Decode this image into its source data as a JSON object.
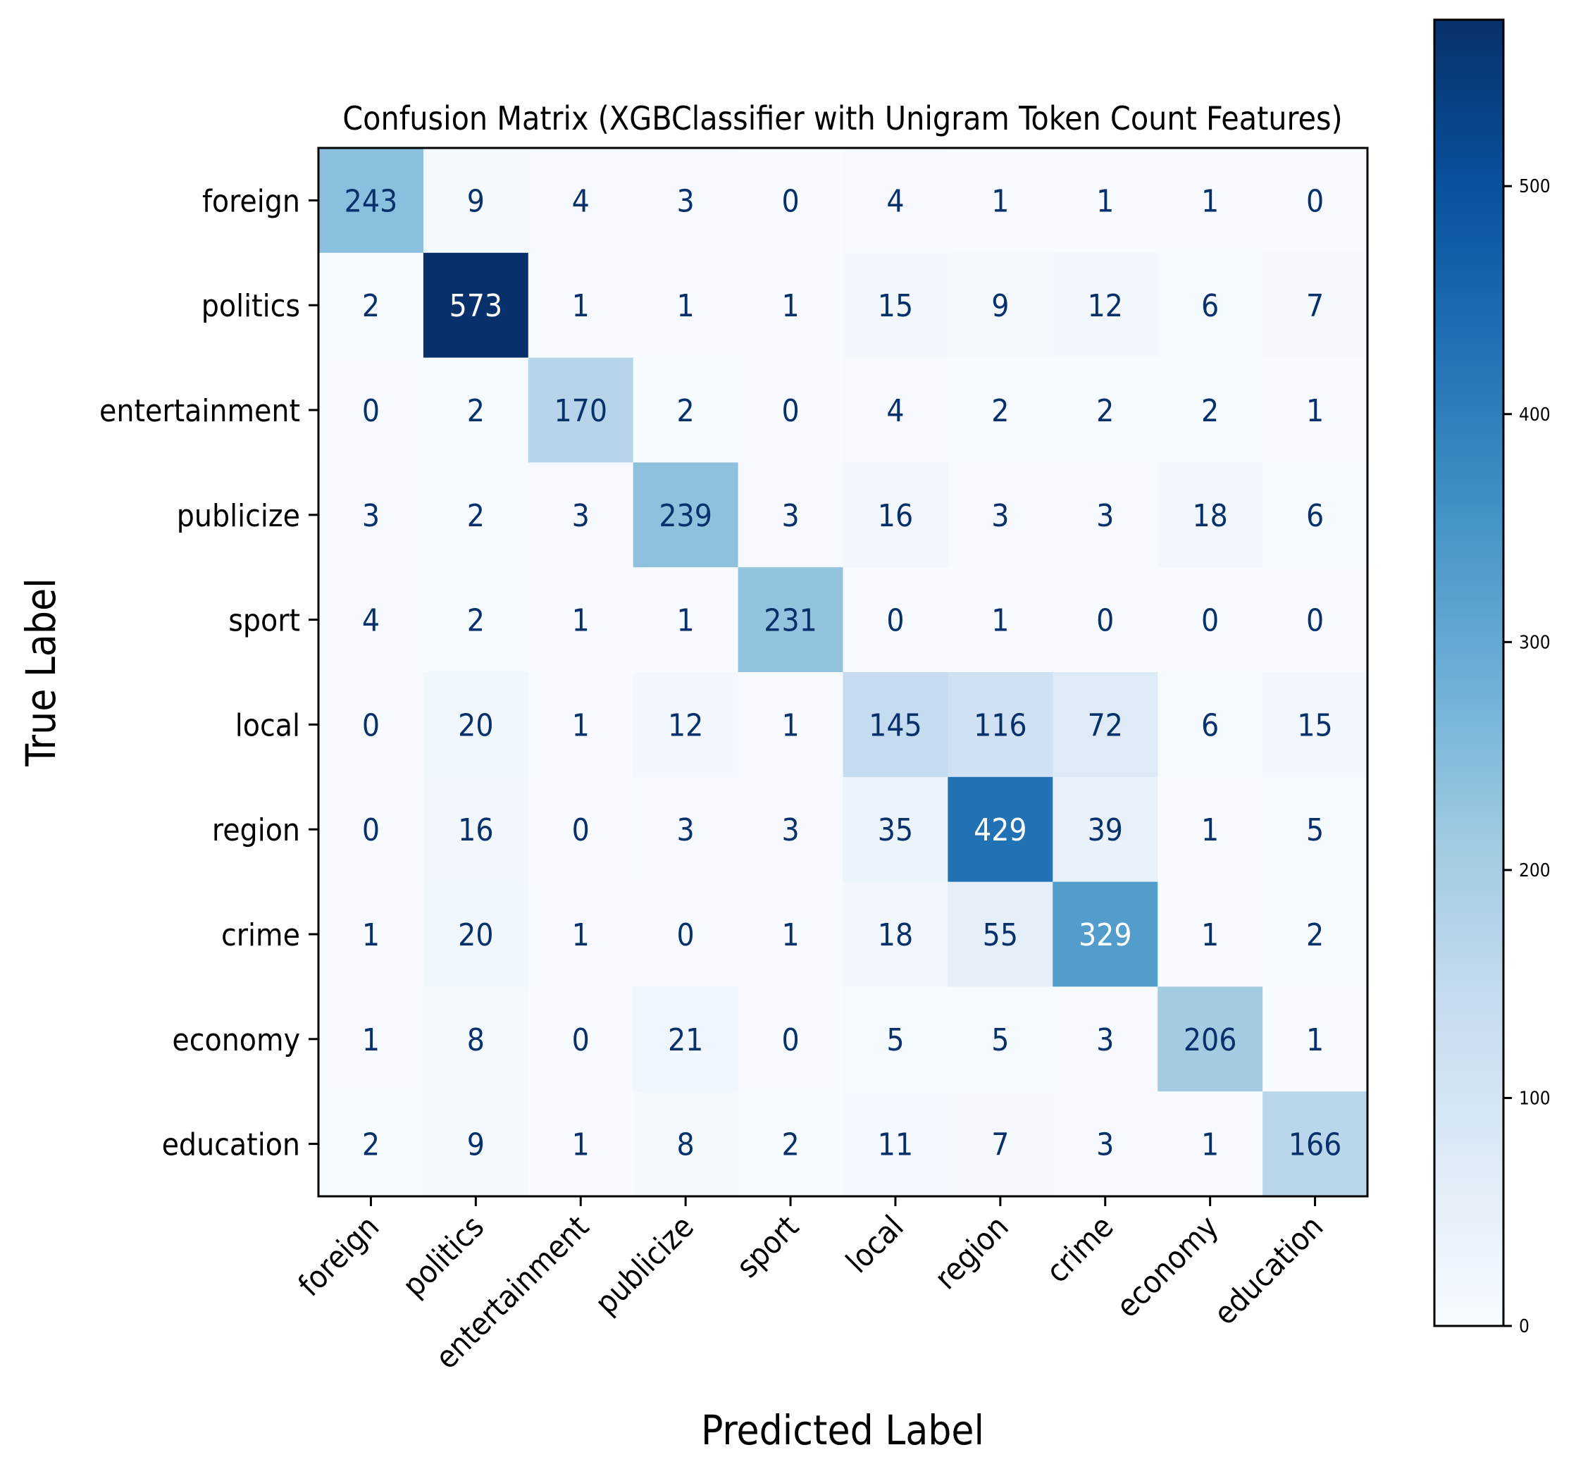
{
  "chart_data": {
    "type": "heatmap",
    "title": "Confusion Matrix (XGBClassifier with Unigram Token Count Features)",
    "xlabel": "Predicted Label",
    "ylabel": "True Label",
    "x_categories": [
      "foreign",
      "politics",
      "entertainment",
      "publicize",
      "sport",
      "local",
      "region",
      "crime",
      "economy",
      "education"
    ],
    "y_categories": [
      "foreign",
      "politics",
      "entertainment",
      "publicize",
      "sport",
      "local",
      "region",
      "crime",
      "economy",
      "education"
    ],
    "matrix": [
      [
        243,
        9,
        4,
        3,
        0,
        4,
        1,
        1,
        1,
        0
      ],
      [
        2,
        573,
        1,
        1,
        1,
        15,
        9,
        12,
        6,
        7
      ],
      [
        0,
        2,
        170,
        2,
        0,
        4,
        2,
        2,
        2,
        1
      ],
      [
        3,
        2,
        3,
        239,
        3,
        16,
        3,
        3,
        18,
        6
      ],
      [
        4,
        2,
        1,
        1,
        231,
        0,
        1,
        0,
        0,
        0
      ],
      [
        0,
        20,
        1,
        12,
        1,
        145,
        116,
        72,
        6,
        15
      ],
      [
        0,
        16,
        0,
        3,
        3,
        35,
        429,
        39,
        1,
        5
      ],
      [
        1,
        20,
        1,
        0,
        1,
        18,
        55,
        329,
        1,
        2
      ],
      [
        1,
        8,
        0,
        21,
        0,
        5,
        5,
        3,
        206,
        1
      ],
      [
        2,
        9,
        1,
        8,
        2,
        11,
        7,
        3,
        1,
        166
      ]
    ],
    "colormap": "Blues",
    "vmin": 0,
    "vmax": 573,
    "colorbar_ticks": [
      0,
      100,
      200,
      300,
      400,
      500
    ],
    "grid": false,
    "legend": "colorbar-right"
  }
}
